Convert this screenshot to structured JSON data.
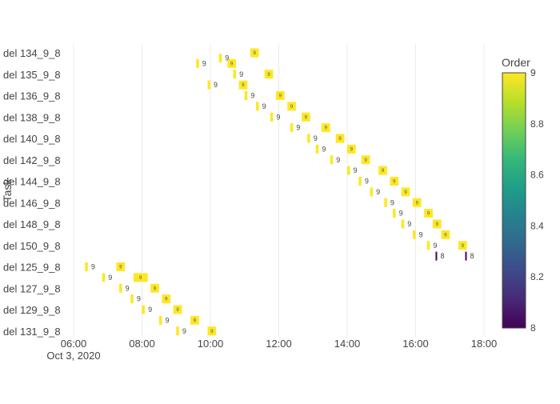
{
  "chart_data": {
    "type": "gantt",
    "title": "",
    "xlabel": "",
    "ylabel": "Task",
    "x_range": [
      "2020-10-03T05:15",
      "2020-10-03T18:30"
    ],
    "x_ticks": [
      "06:00",
      "08:00",
      "10:00",
      "12:00",
      "14:00",
      "16:00",
      "18:00"
    ],
    "x_tick_values": [
      "2020-10-03T06:00",
      "2020-10-03T08:00",
      "2020-10-03T10:00",
      "2020-10-03T12:00",
      "2020-10-03T14:00",
      "2020-10-03T16:00",
      "2020-10-03T18:00"
    ],
    "x_date_label": "Oct 3, 2020",
    "grid": true,
    "tasks": [
      "del 134_9_8",
      "del 135_9_8",
      "del 136_9_8",
      "del 138_9_8",
      "del 140_9_8",
      "del 142_9_8",
      "del 144_9_8",
      "del 146_9_8",
      "del 148_9_8",
      "del 150_9_8",
      "del 125_9_8",
      "del 127_9_8",
      "del 129_9_8",
      "del 131_9_8"
    ],
    "bar_value_label": "9",
    "bars": [
      {
        "start": "2020-10-03T10:15",
        "end": "2020-10-03T10:20",
        "row": 0.25,
        "order": 9,
        "label": "9"
      },
      {
        "start": "2020-10-03T11:10",
        "end": "2020-10-03T11:25",
        "row": 0.0,
        "order": 9,
        "label": "9"
      },
      {
        "start": "2020-10-03T09:35",
        "end": "2020-10-03T09:40",
        "row": 0.5,
        "order": 9,
        "label": "9"
      },
      {
        "start": "2020-10-03T10:30",
        "end": "2020-10-03T10:45",
        "row": 0.5,
        "order": 9,
        "label": "9"
      },
      {
        "start": "2020-10-03T10:40",
        "end": "2020-10-03T10:45",
        "row": 1.0,
        "order": 9,
        "label": "9"
      },
      {
        "start": "2020-10-03T11:35",
        "end": "2020-10-03T11:50",
        "row": 1.0,
        "order": 9,
        "label": "9"
      },
      {
        "start": "2020-10-03T09:55",
        "end": "2020-10-03T10:00",
        "row": 1.5,
        "order": 9,
        "label": "9"
      },
      {
        "start": "2020-10-03T10:50",
        "end": "2020-10-03T11:05",
        "row": 1.5,
        "order": 9,
        "label": "9"
      },
      {
        "start": "2020-10-03T11:00",
        "end": "2020-10-03T11:05",
        "row": 2.0,
        "order": 9,
        "label": "9"
      },
      {
        "start": "2020-10-03T11:55",
        "end": "2020-10-03T12:10",
        "row": 2.0,
        "order": 9,
        "label": "9"
      },
      {
        "start": "2020-10-03T11:20",
        "end": "2020-10-03T11:25",
        "row": 2.5,
        "order": 9,
        "label": "9"
      },
      {
        "start": "2020-10-03T12:15",
        "end": "2020-10-03T12:30",
        "row": 2.5,
        "order": 9,
        "label": "9"
      },
      {
        "start": "2020-10-03T11:45",
        "end": "2020-10-03T11:50",
        "row": 3.0,
        "order": 9,
        "label": "9"
      },
      {
        "start": "2020-10-03T12:40",
        "end": "2020-10-03T12:55",
        "row": 3.0,
        "order": 9,
        "label": "9"
      },
      {
        "start": "2020-10-03T12:20",
        "end": "2020-10-03T12:25",
        "row": 3.5,
        "order": 9,
        "label": "9"
      },
      {
        "start": "2020-10-03T13:15",
        "end": "2020-10-03T13:30",
        "row": 3.5,
        "order": 9,
        "label": "9"
      },
      {
        "start": "2020-10-03T12:50",
        "end": "2020-10-03T12:55",
        "row": 4.0,
        "order": 9,
        "label": "9"
      },
      {
        "start": "2020-10-03T13:40",
        "end": "2020-10-03T13:55",
        "row": 4.0,
        "order": 9,
        "label": "9"
      },
      {
        "start": "2020-10-03T13:05",
        "end": "2020-10-03T13:10",
        "row": 4.5,
        "order": 9,
        "label": "9"
      },
      {
        "start": "2020-10-03T14:00",
        "end": "2020-10-03T14:15",
        "row": 4.5,
        "order": 9,
        "label": "9"
      },
      {
        "start": "2020-10-03T13:30",
        "end": "2020-10-03T13:35",
        "row": 5.0,
        "order": 9,
        "label": "9"
      },
      {
        "start": "2020-10-03T14:25",
        "end": "2020-10-03T14:40",
        "row": 5.0,
        "order": 9,
        "label": "9"
      },
      {
        "start": "2020-10-03T14:00",
        "end": "2020-10-03T14:05",
        "row": 5.5,
        "order": 9,
        "label": "9"
      },
      {
        "start": "2020-10-03T14:55",
        "end": "2020-10-03T15:10",
        "row": 5.5,
        "order": 9,
        "label": "9"
      },
      {
        "start": "2020-10-03T14:20",
        "end": "2020-10-03T14:25",
        "row": 6.0,
        "order": 9,
        "label": "9"
      },
      {
        "start": "2020-10-03T15:15",
        "end": "2020-10-03T15:30",
        "row": 6.0,
        "order": 9,
        "label": "9"
      },
      {
        "start": "2020-10-03T14:40",
        "end": "2020-10-03T14:45",
        "row": 6.5,
        "order": 9,
        "label": "9"
      },
      {
        "start": "2020-10-03T15:35",
        "end": "2020-10-03T15:50",
        "row": 6.5,
        "order": 9,
        "label": "9"
      },
      {
        "start": "2020-10-03T15:05",
        "end": "2020-10-03T15:10",
        "row": 7.0,
        "order": 9,
        "label": "9"
      },
      {
        "start": "2020-10-03T15:55",
        "end": "2020-10-03T16:10",
        "row": 7.0,
        "order": 9,
        "label": "9"
      },
      {
        "start": "2020-10-03T15:20",
        "end": "2020-10-03T15:25",
        "row": 7.5,
        "order": 9,
        "label": "9"
      },
      {
        "start": "2020-10-03T16:15",
        "end": "2020-10-03T16:30",
        "row": 7.5,
        "order": 9,
        "label": "9"
      },
      {
        "start": "2020-10-03T15:35",
        "end": "2020-10-03T15:40",
        "row": 8.0,
        "order": 9,
        "label": "9"
      },
      {
        "start": "2020-10-03T16:30",
        "end": "2020-10-03T16:45",
        "row": 8.0,
        "order": 9,
        "label": "9"
      },
      {
        "start": "2020-10-03T15:55",
        "end": "2020-10-03T16:00",
        "row": 8.5,
        "order": 9,
        "label": "9"
      },
      {
        "start": "2020-10-03T16:45",
        "end": "2020-10-03T17:00",
        "row": 8.5,
        "order": 9,
        "label": "9"
      },
      {
        "start": "2020-10-03T16:20",
        "end": "2020-10-03T16:25",
        "row": 9.0,
        "order": 9,
        "label": "9"
      },
      {
        "start": "2020-10-03T17:15",
        "end": "2020-10-03T17:30",
        "row": 9.0,
        "order": 9,
        "label": "9"
      },
      {
        "start": "2020-10-03T16:35",
        "end": "2020-10-03T16:38",
        "row": 9.5,
        "order": 8,
        "label": "8"
      },
      {
        "start": "2020-10-03T17:27",
        "end": "2020-10-03T17:30",
        "row": 9.5,
        "order": 8,
        "label": "8"
      },
      {
        "start": "2020-10-03T06:20",
        "end": "2020-10-03T06:25",
        "row": 10.0,
        "order": 9,
        "label": "9"
      },
      {
        "start": "2020-10-03T07:15",
        "end": "2020-10-03T07:30",
        "row": 10.0,
        "order": 9,
        "label": "9"
      },
      {
        "start": "2020-10-03T06:50",
        "end": "2020-10-03T06:55",
        "row": 10.5,
        "order": 9,
        "label": "9"
      },
      {
        "start": "2020-10-03T07:45",
        "end": "2020-10-03T08:10",
        "row": 10.5,
        "order": 9,
        "label": "9"
      },
      {
        "start": "2020-10-03T07:20",
        "end": "2020-10-03T07:25",
        "row": 11.0,
        "order": 9,
        "label": "9"
      },
      {
        "start": "2020-10-03T08:15",
        "end": "2020-10-03T08:30",
        "row": 11.0,
        "order": 9,
        "label": "9"
      },
      {
        "start": "2020-10-03T07:40",
        "end": "2020-10-03T07:45",
        "row": 11.5,
        "order": 9,
        "label": "9"
      },
      {
        "start": "2020-10-03T08:35",
        "end": "2020-10-03T08:50",
        "row": 11.5,
        "order": 9,
        "label": "9"
      },
      {
        "start": "2020-10-03T08:00",
        "end": "2020-10-03T08:05",
        "row": 12.0,
        "order": 9,
        "label": "9"
      },
      {
        "start": "2020-10-03T08:55",
        "end": "2020-10-03T09:10",
        "row": 12.0,
        "order": 9,
        "label": "9"
      },
      {
        "start": "2020-10-03T08:30",
        "end": "2020-10-03T08:35",
        "row": 12.5,
        "order": 9,
        "label": "9"
      },
      {
        "start": "2020-10-03T09:25",
        "end": "2020-10-03T09:40",
        "row": 12.5,
        "order": 9,
        "label": "9"
      },
      {
        "start": "2020-10-03T09:00",
        "end": "2020-10-03T09:05",
        "row": 13.0,
        "order": 9,
        "label": "9"
      },
      {
        "start": "2020-10-03T09:55",
        "end": "2020-10-03T10:10",
        "row": 13.0,
        "order": 9,
        "label": "9"
      }
    ],
    "colorbar": {
      "title": "Order",
      "min": 8,
      "max": 9,
      "ticks": [
        "8",
        "8.2",
        "8.4",
        "8.6",
        "8.8",
        "9"
      ],
      "tick_values": [
        8,
        8.2,
        8.4,
        8.6,
        8.8,
        9
      ],
      "colorscale": "Viridis"
    },
    "colors": {
      "high": "#fde725",
      "low": "#440154",
      "grid": "#ebebeb",
      "text": "#444444",
      "label": "#444444"
    }
  }
}
